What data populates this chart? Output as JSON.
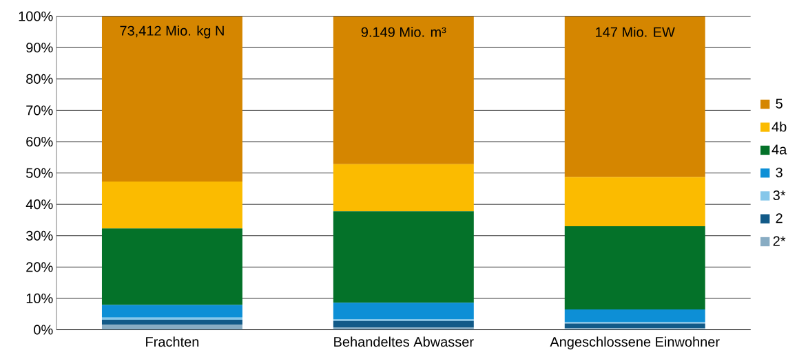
{
  "chart_data": {
    "type": "bar",
    "stacked": true,
    "categories": [
      "Frachten",
      "Behandeltes Abwasser",
      "Angeschlossene Einwohner"
    ],
    "series": [
      {
        "name": "2*",
        "color": "#88acc3",
        "values": [
          1.6,
          0.8,
          0.5
        ]
      },
      {
        "name": "2",
        "color": "#125a88",
        "values": [
          1.6,
          2.0,
          1.5
        ]
      },
      {
        "name": "3*",
        "color": "#86c7ea",
        "values": [
          0.7,
          0.5,
          0.4
        ]
      },
      {
        "name": "3",
        "color": "#0d8fd6",
        "values": [
          4.0,
          5.3,
          4.1
        ]
      },
      {
        "name": "4a",
        "color": "#047229",
        "values": [
          24.4,
          29.2,
          26.5
        ]
      },
      {
        "name": "4b",
        "color": "#fbbb00",
        "values": [
          15.0,
          15.0,
          15.7
        ]
      },
      {
        "name": "5",
        "color": "#d58600",
        "values": [
          52.7,
          47.2,
          51.3
        ]
      }
    ],
    "ylim": [
      0,
      100
    ],
    "yticks": [
      {
        "value": 0,
        "label": "0%"
      },
      {
        "value": 10,
        "label": "10%"
      },
      {
        "value": 20,
        "label": "20%"
      },
      {
        "value": 30,
        "label": "30%"
      },
      {
        "value": 40,
        "label": "40%"
      },
      {
        "value": 50,
        "label": "50%"
      },
      {
        "value": 60,
        "label": "60%"
      },
      {
        "value": 70,
        "label": "70%"
      },
      {
        "value": 80,
        "label": "80%"
      },
      {
        "value": 90,
        "label": "90%"
      },
      {
        "value": 100,
        "label": "100%"
      }
    ],
    "grid": "y",
    "legend": "right",
    "annotations": [
      "73,412 Mio. kg N",
      "9.149 Mio. m³",
      "147 Mio. EW"
    ]
  }
}
